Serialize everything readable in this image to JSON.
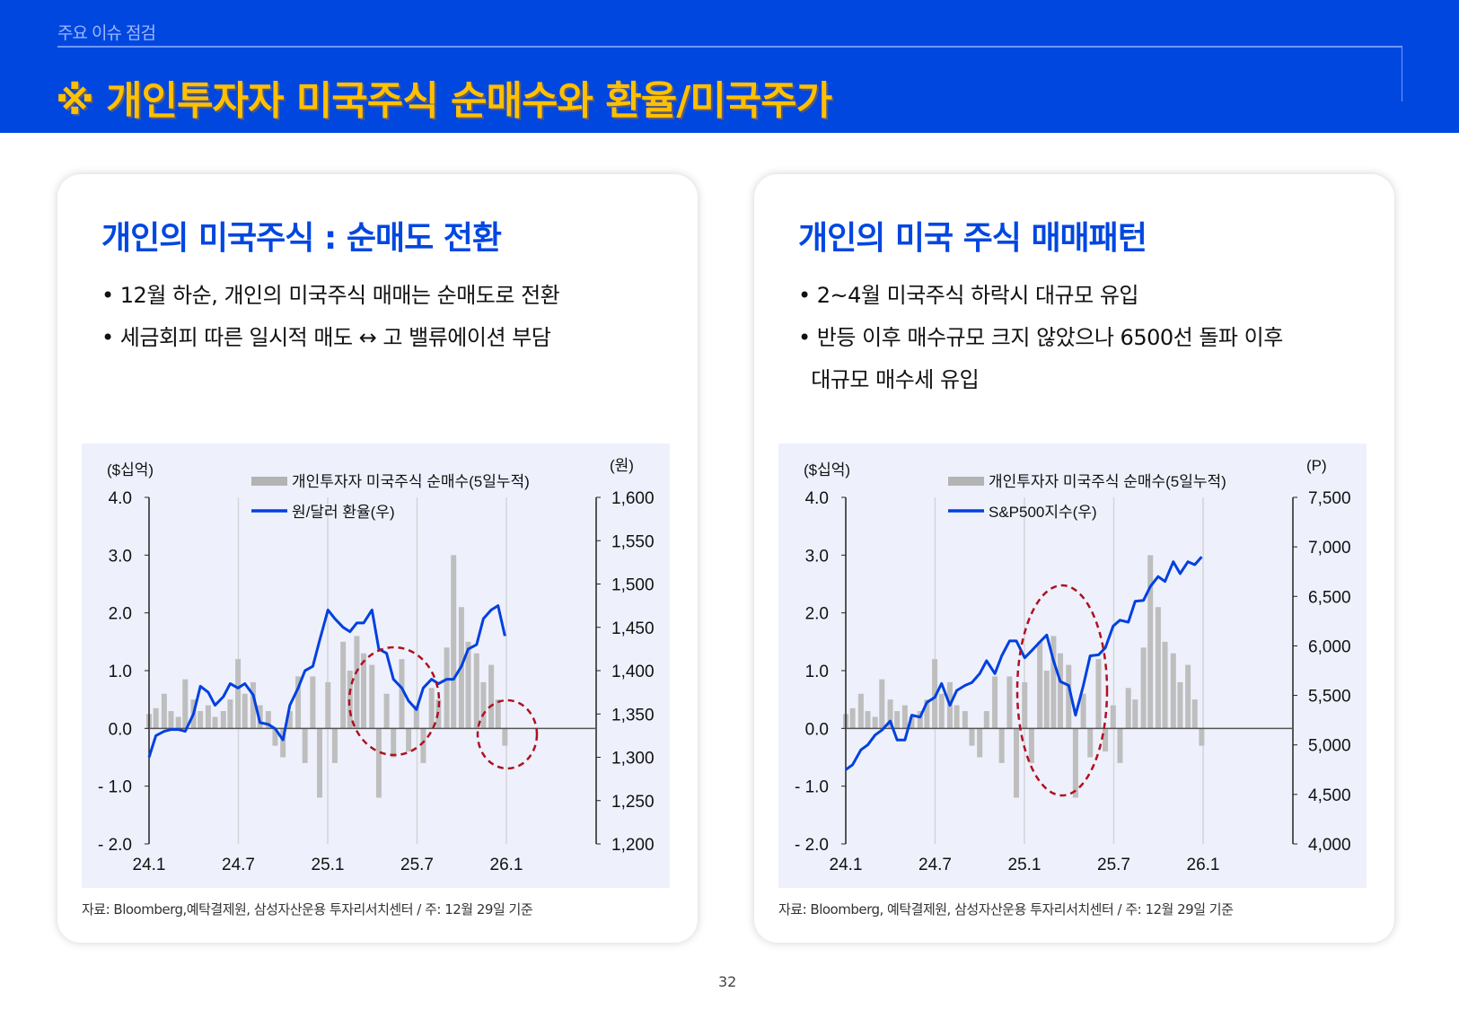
{
  "header": {
    "section": "주요 이슈 점검",
    "title": "※ 개인투자자 미국주식 순매수와 환율/미국주가"
  },
  "cards": [
    {
      "heading": "개인의 미국주식 : 순매도 전환",
      "bullets": [
        "• 12월 하순, 개인의 미국주식 매매는 순매도로 전환",
        "• 세금회피 따른 일시적 매도 ↔ 고 밸류에이션 부담"
      ],
      "source": "자료: Bloomberg,예탁결제원,  삼성자산운용 투자리서치센터 / 주: 12월 29일 기준"
    },
    {
      "heading": "개인의 미국 주식 매매패턴",
      "bullets": [
        "• 2~4월 미국주식 하락시 대규모 유입",
        "• 반등 이후 매수규모 크지 않았으나 6500선 돌파 이후",
        "  대규모 매수세 유입"
      ],
      "source": "자료: Bloomberg, 예탁결제원, 삼성자산운용 투자리서치센터 / 주: 12월 29일 기준"
    }
  ],
  "page_number": "32",
  "colors": {
    "header": "#0047E0",
    "title": "#FFC000",
    "bar": "#BEBEBE",
    "line": "#0040E0",
    "circle": "#B01020",
    "panel": "#EEF1FC"
  },
  "chart_data": [
    {
      "type": "bar+line",
      "ylabel_left": "($십억)",
      "ylabel_right": "(원)",
      "yticks_left": [
        "4.0",
        "3.0",
        "2.0",
        "1.0",
        "0.0",
        "- 1.0",
        "- 2.0"
      ],
      "ylim_left": [
        -2,
        4
      ],
      "yticks_right": [
        "1,600",
        "1,550",
        "1,500",
        "1,450",
        "1,400",
        "1,350",
        "1,300",
        "1,250",
        "1,200"
      ],
      "ylim_right": [
        1200,
        1600
      ],
      "xticks": [
        "24.1",
        "24.7",
        "25.1",
        "25.7",
        "26.1"
      ],
      "grid": "vertical at x ticks",
      "legend": "top-center",
      "highlight": "dashed red circles",
      "dates": [
        "2024-01-01",
        "2024-01-15",
        "2024-02-01",
        "2024-02-15",
        "2024-03-01",
        "2024-03-15",
        "2024-04-01",
        "2024-04-15",
        "2024-05-01",
        "2024-05-15",
        "2024-06-01",
        "2024-06-15",
        "2024-07-01",
        "2024-07-15",
        "2024-08-01",
        "2024-08-15",
        "2024-09-01",
        "2024-09-15",
        "2024-10-01",
        "2024-10-15",
        "2024-11-01",
        "2024-11-15",
        "2024-12-01",
        "2024-12-15",
        "2025-01-01",
        "2025-01-15",
        "2025-02-01",
        "2025-02-15",
        "2025-03-01",
        "2025-03-15",
        "2025-04-01",
        "2025-04-15",
        "2025-05-01",
        "2025-05-15",
        "2025-06-01",
        "2025-06-15",
        "2025-07-01",
        "2025-07-15",
        "2025-08-01",
        "2025-08-15",
        "2025-09-01",
        "2025-09-15",
        "2025-10-01",
        "2025-10-15",
        "2025-11-01",
        "2025-11-15",
        "2025-12-01",
        "2025-12-15",
        "2025-12-29"
      ],
      "series": [
        {
          "name": "개인투자자 미국주식 순매수(5일누적)",
          "type": "bar",
          "axis": "left",
          "values": [
            0.25,
            0.35,
            0.6,
            0.3,
            0.2,
            0.85,
            0.5,
            0.3,
            0.4,
            0.2,
            0.3,
            0.5,
            1.2,
            0.6,
            0.8,
            0.4,
            0.3,
            -0.3,
            -0.5,
            0.3,
            0.9,
            -0.6,
            0.9,
            -1.2,
            0.8,
            -0.6,
            1.5,
            1.0,
            1.6,
            1.3,
            1.1,
            -1.2,
            0.6,
            -0.5,
            1.2,
            -0.4,
            0.4,
            -0.6,
            0.7,
            0.5,
            1.4,
            3.0,
            2.1,
            1.5,
            1.3,
            0.8,
            1.1,
            0.5,
            -0.3
          ]
        },
        {
          "name": "원/달러 환율(우)",
          "type": "line",
          "axis": "right",
          "values": [
            1300,
            1325,
            1330,
            1332,
            1332,
            1330,
            1350,
            1382,
            1375,
            1360,
            1370,
            1385,
            1380,
            1385,
            1372,
            1340,
            1338,
            1333,
            1320,
            1360,
            1380,
            1400,
            1405,
            1435,
            1470,
            1460,
            1450,
            1445,
            1455,
            1455,
            1470,
            1425,
            1420,
            1390,
            1380,
            1365,
            1355,
            1380,
            1390,
            1385,
            1390,
            1390,
            1405,
            1425,
            1430,
            1460,
            1470,
            1475,
            1440
          ]
        }
      ]
    },
    {
      "type": "bar+line",
      "ylabel_left": "($십억)",
      "ylabel_right": "(P)",
      "yticks_left": [
        "4.0",
        "3.0",
        "2.0",
        "1.0",
        "0.0",
        "- 1.0",
        "- 2.0"
      ],
      "ylim_left": [
        -2,
        4
      ],
      "yticks_right": [
        "7,500",
        "7,000",
        "6,500",
        "6,000",
        "5,500",
        "5,000",
        "4,500",
        "4,000"
      ],
      "ylim_right": [
        4000,
        7500
      ],
      "xticks": [
        "24.1",
        "24.7",
        "25.1",
        "25.7",
        "26.1"
      ],
      "grid": "vertical at x ticks",
      "legend": "top-center",
      "highlight": "dashed red ellipse",
      "dates": [
        "2024-01-01",
        "2024-01-15",
        "2024-02-01",
        "2024-02-15",
        "2024-03-01",
        "2024-03-15",
        "2024-04-01",
        "2024-04-15",
        "2024-05-01",
        "2024-05-15",
        "2024-06-01",
        "2024-06-15",
        "2024-07-01",
        "2024-07-15",
        "2024-08-01",
        "2024-08-15",
        "2024-09-01",
        "2024-09-15",
        "2024-10-01",
        "2024-10-15",
        "2024-11-01",
        "2024-11-15",
        "2024-12-01",
        "2024-12-15",
        "2025-01-01",
        "2025-01-15",
        "2025-02-01",
        "2025-02-15",
        "2025-03-01",
        "2025-03-15",
        "2025-04-01",
        "2025-04-15",
        "2025-05-01",
        "2025-05-15",
        "2025-06-01",
        "2025-06-15",
        "2025-07-01",
        "2025-07-15",
        "2025-08-01",
        "2025-08-15",
        "2025-09-01",
        "2025-09-15",
        "2025-10-01",
        "2025-10-15",
        "2025-11-01",
        "2025-11-15",
        "2025-12-01",
        "2025-12-15",
        "2025-12-29"
      ],
      "series": [
        {
          "name": "개인투자자 미국주식 순매수(5일누적)",
          "type": "bar",
          "axis": "left",
          "values": [
            0.25,
            0.35,
            0.6,
            0.3,
            0.2,
            0.85,
            0.5,
            0.3,
            0.4,
            0.2,
            0.3,
            0.5,
            1.2,
            0.6,
            0.8,
            0.4,
            0.3,
            -0.3,
            -0.5,
            0.3,
            0.9,
            -0.6,
            0.9,
            -1.2,
            0.8,
            -0.6,
            1.5,
            1.0,
            1.6,
            1.3,
            1.1,
            -1.2,
            0.6,
            -0.5,
            1.2,
            -0.4,
            0.4,
            -0.6,
            0.7,
            0.5,
            1.4,
            3.0,
            2.1,
            1.5,
            1.3,
            0.8,
            1.1,
            0.5,
            -0.3
          ]
        },
        {
          "name": "S&P500지수(우)",
          "type": "line",
          "axis": "right",
          "values": [
            4750,
            4800,
            4950,
            5000,
            5100,
            5150,
            5240,
            5050,
            5050,
            5300,
            5280,
            5430,
            5480,
            5620,
            5400,
            5550,
            5600,
            5630,
            5720,
            5850,
            5720,
            5900,
            6050,
            6050,
            5880,
            5950,
            6040,
            6110,
            5850,
            5640,
            5600,
            5300,
            5600,
            5900,
            5910,
            5980,
            6200,
            6260,
            6240,
            6450,
            6460,
            6600,
            6700,
            6650,
            6850,
            6730,
            6850,
            6820,
            6900
          ]
        }
      ]
    }
  ]
}
